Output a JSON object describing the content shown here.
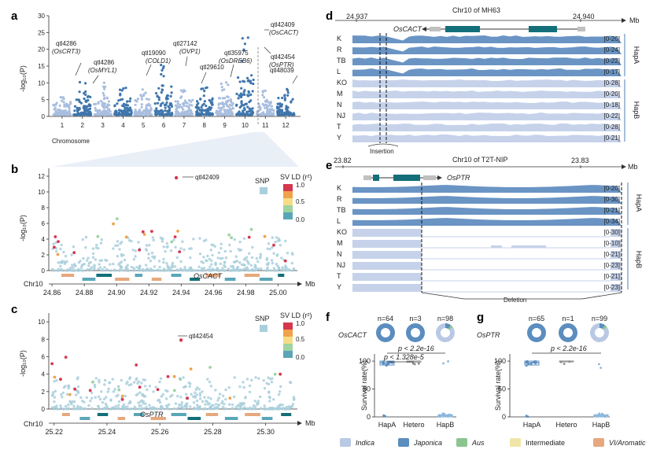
{
  "panels": {
    "a": "a",
    "b": "b",
    "c": "c",
    "d": "d",
    "e": "e",
    "f": "f",
    "g": "g"
  },
  "colors": {
    "indica": "#b9c9e4",
    "japonica": "#5b8dbf",
    "aus": "#8cc58f",
    "intermediate": "#f0e5a8",
    "vi": "#e6a87c",
    "manhattan_dark": "#3f76ad",
    "manhattan_light": "#a9bedf",
    "hapA": "#6a94c4",
    "hapB": "#c6d2ea",
    "gene_exon": "#136f79",
    "snp": "#a9cfdc"
  },
  "panel_a": {
    "ylabel": "-log₁₀(P)",
    "xlabel": "Chromosome",
    "chromosomes": [
      "1",
      "2",
      "3",
      "4",
      "5",
      "6",
      "7",
      "8",
      "9",
      "10",
      "11",
      "12"
    ],
    "ytick_values": [
      0,
      5,
      10,
      15,
      20,
      25,
      30
    ],
    "ytick_labels": [
      "0",
      "5",
      "10",
      "15",
      "20",
      "25",
      "30"
    ],
    "peaks": [
      {
        "chr": 1,
        "top": 7
      },
      {
        "chr": 2,
        "top": 10.4
      },
      {
        "chr": 3,
        "top": 10.1
      },
      {
        "chr": 4,
        "top": 8.8
      },
      {
        "chr": 5,
        "top": 9.5
      },
      {
        "chr": 6,
        "top": 16.5
      },
      {
        "chr": 7,
        "top": 8.1
      },
      {
        "chr": 8,
        "top": 9.3
      },
      {
        "chr": 9,
        "top": 10.2
      },
      {
        "chr": 10,
        "top": 24.5
      },
      {
        "chr": 11,
        "top": 8.5
      },
      {
        "chr": 12,
        "top": 9.2
      }
    ],
    "annotations": [
      {
        "l1": "qtl4286",
        "l2": "(OsCRT3)"
      },
      {
        "l1": "qtl4286",
        "l2": "(OsMYL1)"
      },
      {
        "l1": "qtl19090",
        "l2": "(COLD1)"
      },
      {
        "l1": "qtl27142",
        "l2": "(OVP1)"
      },
      {
        "l1": "qtl29610",
        "l2": ""
      },
      {
        "l1": "qtl35975",
        "l2": "(OsDREB6)"
      },
      {
        "l1": "qtl42409",
        "l2": "(OsCACT)"
      },
      {
        "l1": "qtl42454",
        "l2": "(OsPTR)"
      },
      {
        "l1": "qtl48039",
        "l2": ""
      }
    ]
  },
  "panel_b": {
    "ylabel": "-log₁₀(P)",
    "xlabel": "Mb",
    "chrlabel": "Chr10",
    "xtick_values": [
      24.86,
      24.88,
      24.9,
      24.92,
      24.94,
      24.96,
      24.98,
      25.0
    ],
    "xtick_labels": [
      "24.86",
      "24.88",
      "24.90",
      "24.92",
      "24.94",
      "24.96",
      "24.98",
      "25.00"
    ],
    "ytick_values": [
      0,
      2,
      4,
      6,
      8,
      10,
      12
    ],
    "ytick_labels": [
      "0",
      "2",
      "4",
      "6",
      "8",
      "10",
      "12"
    ],
    "lead": "qtl42409",
    "gene": "OsCACT",
    "snp_label": "SNP",
    "legend_title": "SV LD (r²)",
    "legend_ticks": [
      "1.0",
      "0.5",
      "0.0"
    ]
  },
  "panel_c": {
    "ylabel": "-log₁₀(P)",
    "xlabel": "Mb",
    "chrlabel": "Chr10",
    "xtick_values": [
      25.22,
      25.24,
      25.26,
      25.28,
      25.3
    ],
    "xtick_labels": [
      "25.22",
      "25.24",
      "25.26",
      "25.28",
      "25.30"
    ],
    "ytick_values": [
      0,
      2,
      4,
      6,
      8,
      10
    ],
    "ytick_labels": [
      "0",
      "2",
      "4",
      "6",
      "8",
      "10"
    ],
    "lead": "qtl42454",
    "gene": "OsPTR",
    "snp_label": "SNP",
    "legend_title": "SV LD (r²)",
    "legend_ticks": [
      "1.0",
      "0.5",
      "0.0"
    ]
  },
  "panel_d": {
    "title": "Chr10 of MH63",
    "mb": "Mb",
    "x_left": "24.937",
    "x_right": "24.940",
    "gene": "OsCACT",
    "tracks": [
      {
        "label": "K",
        "range": "[0-20]",
        "hap": "A"
      },
      {
        "label": "R",
        "range": "[0-24]",
        "hap": "A"
      },
      {
        "label": "TB",
        "range": "[0-22]",
        "hap": "A"
      },
      {
        "label": "L",
        "range": "[0-17]",
        "hap": "A"
      },
      {
        "label": "KO",
        "range": "[0-28]",
        "hap": "B"
      },
      {
        "label": "M",
        "range": "[0-20]",
        "hap": "B"
      },
      {
        "label": "N",
        "range": "[0-18]",
        "hap": "B"
      },
      {
        "label": "NJ",
        "range": "[0-22]",
        "hap": "B"
      },
      {
        "label": "T",
        "range": "[0-28]",
        "hap": "B"
      },
      {
        "label": "Y",
        "range": "[0-21]",
        "hap": "B"
      }
    ],
    "hapA": "HapA",
    "hapB": "HapB",
    "event": "Insertion"
  },
  "panel_e": {
    "title": "Chr10 of T2T-NIP",
    "mb": "Mb",
    "x_left": "23.82",
    "x_right": "23.83",
    "gene": "OsPTR",
    "tracks": [
      {
        "label": "K",
        "range": "[0-20]",
        "hap": "A"
      },
      {
        "label": "R",
        "range": "[0-30]",
        "hap": "A"
      },
      {
        "label": "TB",
        "range": "[0-21]",
        "hap": "A"
      },
      {
        "label": "L",
        "range": "[0-34]",
        "hap": "A"
      },
      {
        "label": "KO",
        "range": "[0-30]",
        "hap": "B"
      },
      {
        "label": "M",
        "range": "[0-10]",
        "hap": "B"
      },
      {
        "label": "N",
        "range": "[0-21]",
        "hap": "B"
      },
      {
        "label": "NJ",
        "range": "[0-23]",
        "hap": "B"
      },
      {
        "label": "T",
        "range": "[0-21]",
        "hap": "B"
      },
      {
        "label": "Y",
        "range": "[0-23]",
        "hap": "B"
      }
    ],
    "hapA": "HapA",
    "hapB": "HapB",
    "event": "Deletion"
  },
  "panel_f": {
    "gene": "OsCACT",
    "ylabel": "Survival rate(%)",
    "groups": [
      "HapA",
      "Hetero",
      "HapB"
    ],
    "counts": [
      "n=64",
      "n=3",
      "n=98"
    ],
    "ytick_values": [
      0,
      50,
      100
    ],
    "ytick_labels": [
      "0",
      "50",
      "100"
    ],
    "medians": [
      97,
      100,
      2
    ],
    "q1": [
      93,
      98,
      0
    ],
    "q3": [
      100,
      100,
      4
    ],
    "p1": "p < 2.2e-16",
    "p2": "p < 1.328e-5",
    "donuts": [
      {
        "japonica": 1.0,
        "aus": 0,
        "indica": 0
      },
      {
        "japonica": 1.0,
        "aus": 0,
        "indica": 0
      },
      {
        "japonica": 0.1,
        "aus": 0.05,
        "indica": 0.85
      }
    ]
  },
  "panel_g": {
    "gene": "OsPTR",
    "ylabel": "Survival rate(%)",
    "groups": [
      "HapA",
      "Hetero",
      "HapB"
    ],
    "counts": [
      "n=65",
      "n=1",
      "n=99"
    ],
    "ytick_values": [
      0,
      50,
      100
    ],
    "ytick_labels": [
      "0",
      "50",
      "100"
    ],
    "medians": [
      97,
      100,
      2
    ],
    "q1": [
      93,
      100,
      0
    ],
    "q3": [
      100,
      100,
      4
    ],
    "p1": "p < 2.2e-16",
    "donuts": [
      {
        "japonica": 1.0,
        "aus": 0,
        "indica": 0
      },
      {
        "japonica": 1.0,
        "aus": 0,
        "indica": 0
      },
      {
        "japonica": 0.1,
        "aus": 0.05,
        "indica": 0.85
      }
    ]
  },
  "legend": [
    {
      "label": "Indica",
      "color": "#b9c9e4"
    },
    {
      "label": "Japonica",
      "color": "#5b8dbf"
    },
    {
      "label": "Aus",
      "color": "#8cc58f"
    },
    {
      "label": "Intermediate",
      "color": "#f0e5a8"
    },
    {
      "label": "VI/Aromatic",
      "color": "#e6a87c"
    }
  ]
}
